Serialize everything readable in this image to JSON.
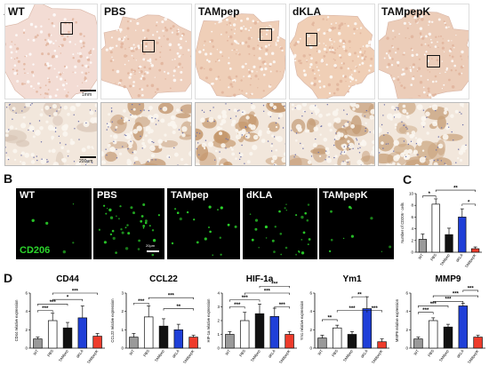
{
  "panels": {
    "a": "A",
    "b": "B",
    "c": "C",
    "d": "D"
  },
  "groups": [
    "WT",
    "PBS",
    "TAMpep",
    "dKLA",
    "TAMpepK"
  ],
  "panel_a": {
    "scale_top": "1mm",
    "scale_bottom": "200μm"
  },
  "panel_b": {
    "stain_label": "CD206",
    "scale": "20μm"
  },
  "colors": {
    "wt": "#9a9a9a",
    "pbs": "#ffffff",
    "tampep": "#111111",
    "dkla": "#1f3fd8",
    "tampepk": "#ee3b2b",
    "fluor_green": "#2bd42b"
  },
  "chart_data": [
    {
      "type": "bar",
      "id": "c",
      "ylabel": "Number of CD206⁺ cells",
      "categories": [
        "WT",
        "PBS",
        "TAMpep",
        "dKLA",
        "TAMpepK"
      ],
      "values": [
        2.2,
        8.2,
        3.0,
        6.0,
        0.6
      ],
      "errors": [
        0.9,
        0.9,
        1.1,
        1.4,
        0.3
      ],
      "ylim": [
        0,
        10
      ],
      "significance": [
        {
          "from": 0,
          "to": 1,
          "label": "*",
          "level": 9.6
        },
        {
          "from": 1,
          "to": 4,
          "label": "**",
          "level": 10.6
        },
        {
          "from": 3,
          "to": 4,
          "label": "*",
          "level": 8.2
        }
      ]
    },
    {
      "type": "bar",
      "id": "d1",
      "title": "CD44",
      "ylabel": "CD44 relative expression",
      "categories": [
        "WT",
        "PBS",
        "TAMpep",
        "dKLA",
        "TAMpepK"
      ],
      "values": [
        1.0,
        3.0,
        2.2,
        3.3,
        1.3
      ],
      "errors": [
        0.2,
        0.8,
        0.6,
        1.3,
        0.3
      ],
      "ylim": [
        0,
        6
      ],
      "significance": [
        {
          "from": 0,
          "to": 1,
          "label": "***",
          "level": 4.1
        },
        {
          "from": 0,
          "to": 2,
          "label": "***",
          "level": 4.8
        },
        {
          "from": 1,
          "to": 3,
          "label": "*",
          "level": 5.3
        },
        {
          "from": 1,
          "to": 4,
          "label": "***",
          "level": 6.0
        }
      ]
    },
    {
      "type": "bar",
      "id": "d2",
      "title": "CCL22",
      "ylabel": "CCL22 relative expression",
      "categories": [
        "WT",
        "PBS",
        "TAMpep",
        "dKLA",
        "TAMpepK"
      ],
      "values": [
        0.6,
        1.7,
        1.2,
        1.0,
        0.6
      ],
      "errors": [
        0.2,
        0.6,
        0.4,
        0.3,
        0.1
      ],
      "ylim": [
        0,
        3
      ],
      "significance": [
        {
          "from": 0,
          "to": 1,
          "label": "***",
          "level": 2.45
        },
        {
          "from": 1,
          "to": 4,
          "label": "***",
          "level": 2.75
        },
        {
          "from": 2,
          "to": 4,
          "label": "**",
          "level": 2.15
        }
      ]
    },
    {
      "type": "bar",
      "id": "d3",
      "title": "HIF-1a",
      "ylabel": "HIF-1a relative expression",
      "categories": [
        "WT",
        "PBS",
        "TAMpep",
        "dKLA",
        "TAMpepK"
      ],
      "values": [
        1.0,
        2.0,
        2.5,
        2.3,
        1.0
      ],
      "errors": [
        0.2,
        0.6,
        0.7,
        0.6,
        0.2
      ],
      "ylim": [
        0,
        4
      ],
      "significance": [
        {
          "from": 0,
          "to": 1,
          "label": "***",
          "level": 3.0
        },
        {
          "from": 0,
          "to": 2,
          "label": "***",
          "level": 3.5
        },
        {
          "from": 1,
          "to": 4,
          "label": "***",
          "level": 4.0
        },
        {
          "from": 2,
          "to": 4,
          "label": "***",
          "level": 4.5
        },
        {
          "from": 3,
          "to": 4,
          "label": "***",
          "level": 3.0
        }
      ]
    },
    {
      "type": "bar",
      "id": "d4",
      "title": "Ym1",
      "ylabel": "Ym1 relative expression",
      "categories": [
        "WT",
        "PBS",
        "TAMpep",
        "dKLA",
        "TAMpepK"
      ],
      "values": [
        1.1,
        2.2,
        1.5,
        4.3,
        0.7
      ],
      "errors": [
        0.3,
        0.3,
        0.3,
        1.3,
        0.3
      ],
      "ylim": [
        0,
        6
      ],
      "significance": [
        {
          "from": 0,
          "to": 1,
          "label": "**",
          "level": 3.1
        },
        {
          "from": 1,
          "to": 3,
          "label": "***",
          "level": 4.1
        },
        {
          "from": 2,
          "to": 3,
          "label": "**",
          "level": 5.6
        },
        {
          "from": 3,
          "to": 4,
          "label": "***",
          "level": 4.1
        }
      ]
    },
    {
      "type": "bar",
      "id": "d5",
      "title": "MMP9",
      "ylabel": "MMP9 relative expression",
      "categories": [
        "WT",
        "PBS",
        "TAMpep",
        "dKLA",
        "TAMpepK"
      ],
      "values": [
        1.0,
        3.0,
        2.3,
        4.6,
        1.2
      ],
      "errors": [
        0.2,
        0.3,
        0.3,
        0.3,
        0.2
      ],
      "ylim": [
        0,
        6
      ],
      "significance": [
        {
          "from": 0,
          "to": 1,
          "label": "***",
          "level": 3.9
        },
        {
          "from": 0,
          "to": 2,
          "label": "***",
          "level": 4.6
        },
        {
          "from": 1,
          "to": 3,
          "label": "***",
          "level": 5.1
        },
        {
          "from": 1,
          "to": 4,
          "label": "***",
          "level": 5.7
        },
        {
          "from": 3,
          "to": 4,
          "label": "***",
          "level": 6.3
        }
      ]
    }
  ]
}
